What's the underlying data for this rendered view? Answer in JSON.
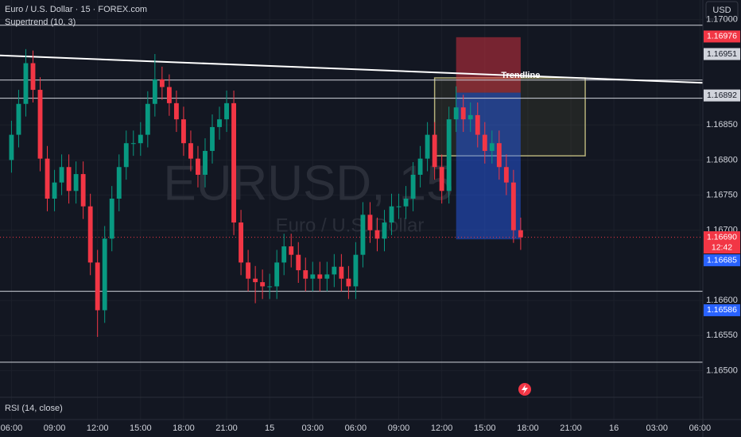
{
  "chart_data": {
    "type": "candlestick",
    "title": "Euro / U.S. Dollar · 15 · FOREX.com",
    "indicator": "Supertrend (10, 3)",
    "lower_pane": "RSI (14, close)",
    "watermark": "EURUSD, 15",
    "watermark_sub": "Euro / U.S. Dollar",
    "currency": "USD",
    "up_color": "#089981",
    "down_color": "#f23645",
    "xlim": [
      -0.8,
      48.2
    ],
    "ylim": [
      1.16462,
      1.17028
    ],
    "xticks": [
      {
        "value": 0,
        "label": "06:00"
      },
      {
        "value": 3,
        "label": "09:00"
      },
      {
        "value": 6,
        "label": "12:00"
      },
      {
        "value": 9,
        "label": "15:00"
      },
      {
        "value": 12,
        "label": "18:00"
      },
      {
        "value": 15,
        "label": "21:00"
      },
      {
        "value": 18,
        "label": "15"
      },
      {
        "value": 21,
        "label": "03:00"
      },
      {
        "value": 24,
        "label": "06:00"
      },
      {
        "value": 27,
        "label": "09:00"
      },
      {
        "value": 30,
        "label": "12:00"
      },
      {
        "value": 33,
        "label": "15:00"
      },
      {
        "value": 36,
        "label": "18:00"
      },
      {
        "value": 39,
        "label": "21:00"
      },
      {
        "value": 42,
        "label": "16"
      },
      {
        "value": 45,
        "label": "03:00"
      },
      {
        "value": 48,
        "label": "06:00"
      }
    ],
    "yticks": [
      {
        "value": 1.17,
        "label": "1.17000"
      },
      {
        "value": 1.1685,
        "label": "1.16850"
      },
      {
        "value": 1.168,
        "label": "1.16800"
      },
      {
        "value": 1.1675,
        "label": "1.16750"
      },
      {
        "value": 1.167,
        "label": "1.16700"
      },
      {
        "value": 1.166,
        "label": "1.16600"
      },
      {
        "value": 1.1655,
        "label": "1.16550"
      },
      {
        "value": 1.165,
        "label": "1.16500"
      }
    ],
    "grid": true,
    "x": [
      0,
      0.5,
      1,
      1.5,
      2,
      2.5,
      3,
      3.5,
      4,
      4.5,
      5,
      5.5,
      6,
      6.5,
      7,
      7.5,
      8,
      8.5,
      9,
      9.5,
      10,
      10.5,
      11,
      11.5,
      12,
      12.5,
      13,
      13.5,
      14,
      14.5,
      15,
      15.5,
      16,
      16.5,
      17,
      17.5,
      18,
      18.5,
      19,
      19.5,
      20,
      20.5,
      21,
      21.5,
      22,
      22.5,
      23,
      23.5,
      24,
      24.5,
      25,
      25.5,
      26,
      26.5,
      27,
      27.5,
      28,
      28.5,
      29,
      29.5,
      30,
      30.5,
      31,
      31.5,
      32,
      32.5,
      33,
      33.5,
      34,
      34.5,
      35,
      35.5
    ],
    "candles": [
      [
        1.168,
        1.16856,
        1.16782,
        1.16836
      ],
      [
        1.16836,
        1.169,
        1.16818,
        1.1688
      ],
      [
        1.1688,
        1.16958,
        1.16862,
        1.16938
      ],
      [
        1.16938,
        1.16956,
        1.16882,
        1.169
      ],
      [
        1.169,
        1.16918,
        1.16784,
        1.16802
      ],
      [
        1.16802,
        1.1682,
        1.16727,
        1.16745
      ],
      [
        1.16745,
        1.16786,
        1.16727,
        1.16768
      ],
      [
        1.16768,
        1.16808,
        1.1675,
        1.1679
      ],
      [
        1.1679,
        1.16808,
        1.16738,
        1.16756
      ],
      [
        1.16756,
        1.16798,
        1.16738,
        1.1678
      ],
      [
        1.1678,
        1.16798,
        1.16716,
        1.16734
      ],
      [
        1.16734,
        1.16752,
        1.16636,
        1.16654
      ],
      [
        1.16654,
        1.16672,
        1.16548,
        1.16586
      ],
      [
        1.16586,
        1.16706,
        1.16568,
        1.16688
      ],
      [
        1.16688,
        1.16763,
        1.1667,
        1.16745
      ],
      [
        1.16745,
        1.16808,
        1.16727,
        1.1679
      ],
      [
        1.1679,
        1.16842,
        1.16772,
        1.16824
      ],
      [
        1.16824,
        1.16842,
        1.16806,
        1.16824
      ],
      [
        1.16824,
        1.16854,
        1.16806,
        1.16836
      ],
      [
        1.16836,
        1.16898,
        1.16818,
        1.1688
      ],
      [
        1.1688,
        1.16951,
        1.16862,
        1.16915
      ],
      [
        1.16915,
        1.16933,
        1.16886,
        1.16904
      ],
      [
        1.16904,
        1.16922,
        1.16863,
        1.16881
      ],
      [
        1.16881,
        1.16899,
        1.1684,
        1.16858
      ],
      [
        1.16858,
        1.16876,
        1.16806,
        1.16824
      ],
      [
        1.16824,
        1.16842,
        1.16784,
        1.16802
      ],
      [
        1.16802,
        1.1682,
        1.16761,
        1.16779
      ],
      [
        1.16779,
        1.16831,
        1.16761,
        1.16813
      ],
      [
        1.16813,
        1.16865,
        1.16795,
        1.16847
      ],
      [
        1.16847,
        1.16876,
        1.16829,
        1.16858
      ],
      [
        1.16858,
        1.16899,
        1.1684,
        1.16881
      ],
      [
        1.16881,
        1.16899,
        1.16693,
        1.16711
      ],
      [
        1.16711,
        1.16729,
        1.16636,
        1.16654
      ],
      [
        1.16654,
        1.16672,
        1.16613,
        1.16631
      ],
      [
        1.16631,
        1.16649,
        1.16596,
        1.16626
      ],
      [
        1.16626,
        1.16644,
        1.16602,
        1.1662
      ],
      [
        1.1662,
        1.16638,
        1.16602,
        1.1662
      ],
      [
        1.1662,
        1.16672,
        1.16602,
        1.16654
      ],
      [
        1.16654,
        1.16695,
        1.16636,
        1.16677
      ],
      [
        1.16677,
        1.16695,
        1.16647,
        1.16665
      ],
      [
        1.16665,
        1.16683,
        1.16625,
        1.16643
      ],
      [
        1.16643,
        1.16661,
        1.16613,
        1.16631
      ],
      [
        1.16631,
        1.16655,
        1.16613,
        1.16637
      ],
      [
        1.16637,
        1.16655,
        1.16613,
        1.16631
      ],
      [
        1.16631,
        1.16655,
        1.16613,
        1.16637
      ],
      [
        1.16637,
        1.16666,
        1.16619,
        1.16648
      ],
      [
        1.16648,
        1.16666,
        1.16613,
        1.16631
      ],
      [
        1.16631,
        1.16649,
        1.16602,
        1.1662
      ],
      [
        1.1662,
        1.16683,
        1.16602,
        1.16665
      ],
      [
        1.16665,
        1.1674,
        1.16647,
        1.16722
      ],
      [
        1.16722,
        1.1674,
        1.16682,
        1.167
      ],
      [
        1.167,
        1.16718,
        1.1667,
        1.16688
      ],
      [
        1.16688,
        1.16729,
        1.1667,
        1.16711
      ],
      [
        1.16711,
        1.16752,
        1.16693,
        1.16734
      ],
      [
        1.16734,
        1.16752,
        1.16716,
        1.16734
      ],
      [
        1.16734,
        1.16763,
        1.16716,
        1.16745
      ],
      [
        1.16745,
        1.16797,
        1.16727,
        1.16779
      ],
      [
        1.16779,
        1.1682,
        1.16761,
        1.16802
      ],
      [
        1.16802,
        1.16854,
        1.16784,
        1.16836
      ],
      [
        1.16836,
        1.16854,
        1.16772,
        1.1679
      ],
      [
        1.1679,
        1.16808,
        1.16738,
        1.16756
      ],
      [
        1.16756,
        1.16876,
        1.16738,
        1.16858
      ],
      [
        1.16858,
        1.16905,
        1.1684,
        1.16875
      ],
      [
        1.16875,
        1.16893,
        1.1684,
        1.16858
      ],
      [
        1.16858,
        1.16882,
        1.1684,
        1.16864
      ],
      [
        1.16864,
        1.16882,
        1.16818,
        1.16836
      ],
      [
        1.16836,
        1.16854,
        1.16795,
        1.16813
      ],
      [
        1.16813,
        1.16842,
        1.16795,
        1.16824
      ],
      [
        1.16824,
        1.16842,
        1.16772,
        1.1679
      ],
      [
        1.1679,
        1.16808,
        1.1675,
        1.16768
      ],
      [
        1.16768,
        1.16786,
        1.16682,
        1.167
      ],
      [
        1.167,
        1.16718,
        1.16672,
        1.1669
      ]
    ],
    "levels": [
      1.16992,
      1.16914,
      1.16888,
      1.16613,
      1.16512
    ],
    "trendline": {
      "label": "Trendline",
      "x": [
        -0.8,
        48.2
      ],
      "y": [
        1.16949,
        1.1691
      ],
      "label_x": 35.5
    },
    "short_position": {
      "x": [
        31,
        35.5
      ],
      "stop": 1.16975,
      "entry": 1.16896,
      "target": 1.16687
    },
    "zone": {
      "x": [
        29.5,
        40
      ],
      "top": 1.16917,
      "bottom": 1.16806
    },
    "price_labels": [
      {
        "value": 1.16976,
        "label": "1.16976",
        "color": "#f23645"
      },
      {
        "value": 1.16951,
        "label": "1.16951",
        "color": "#d1d4dc"
      },
      {
        "value": 1.16892,
        "label": "1.16892",
        "color": "#d1d4dc"
      },
      {
        "value": 1.1669,
        "label": "1.16690",
        "sub": "12:42",
        "color": "#f23645"
      },
      {
        "value": 1.16685,
        "label": "1.16685",
        "color": "#2962ff"
      },
      {
        "value": 1.16586,
        "label": "1.16586",
        "color": "#2962ff"
      }
    ],
    "last_price": 1.1669
  }
}
